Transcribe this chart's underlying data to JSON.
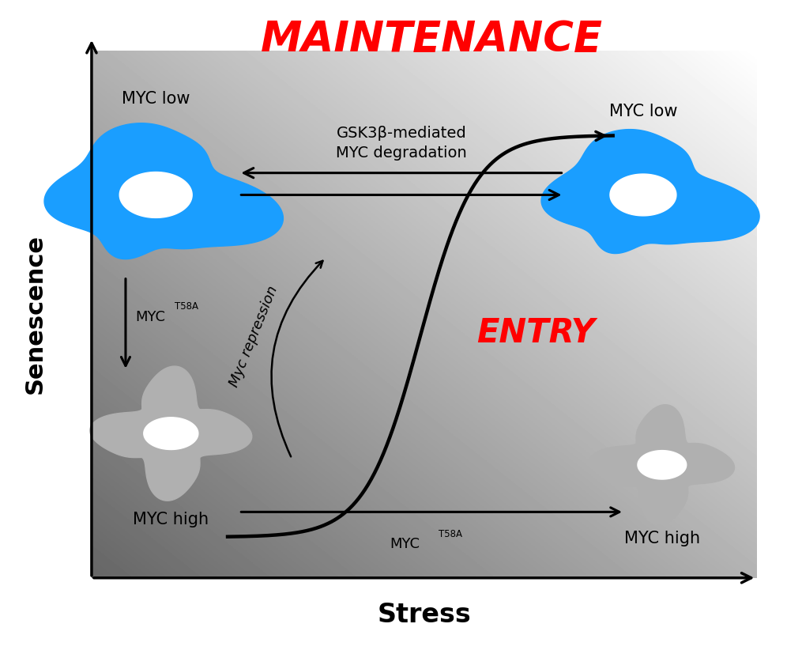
{
  "title": "MAINTENANCE",
  "title_color": "red",
  "title_fontsize": 38,
  "xlabel": "Stress",
  "ylabel": "Senescence",
  "xlabel_fontsize": 24,
  "ylabel_fontsize": 22,
  "blue_cell_color": "#1a9eff",
  "gray_cell_color": "#b0b0b0",
  "entry_label": "ENTRY",
  "entry_color": "red",
  "entry_fontsize": 30,
  "myc_repression_label": "Myc repression",
  "myc_repression_fontsize": 13,
  "gsk3b_label": "GSK3β-mediated\nMYC degradation",
  "gsk3b_fontsize": 14,
  "myc_low_left": "MYC low",
  "myc_low_right": "MYC low",
  "myc_high_left": "MYC high",
  "myc_high_right": "MYC high",
  "label_fontsize": 15
}
